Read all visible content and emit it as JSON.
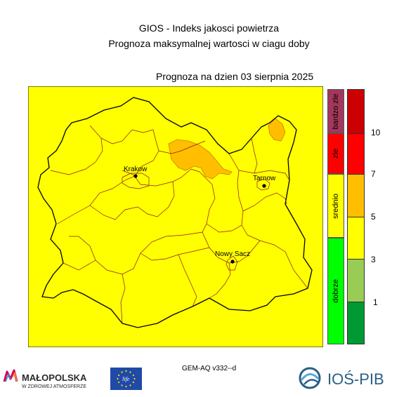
{
  "title": "GIOS - Indeks jakosci powietrza",
  "subtitle": "Prognoza maksymalnej wartosci w ciagu doby",
  "forecast_date": "Prognoza na dzien  03 sierpnia 2025",
  "cities": [
    {
      "name": "Krakow"
    },
    {
      "name": "Tarnow"
    },
    {
      "name": "Nowy Sacz"
    }
  ],
  "categories": [
    {
      "label": "bardzo zle",
      "color": "#a3375c"
    },
    {
      "label": "zle",
      "color": "#ff0000"
    },
    {
      "label": "srednio",
      "color": "#ffff00"
    },
    {
      "label": "dobrze",
      "color": "#00ff00"
    }
  ],
  "scale": {
    "colors": [
      "#009933",
      "#99cc55",
      "#ffff00",
      "#ffbf00",
      "#ff0000",
      "#cc0000"
    ],
    "ticks": [
      "1",
      "3",
      "5",
      "7",
      "10"
    ]
  },
  "map_colors": {
    "background": "#ffff00",
    "elevated": "#ffbf00"
  },
  "model": "GEM-AQ v332--d",
  "logos": {
    "malopolska_name": "MAŁOPOLSKA",
    "malopolska_tagline": "W ZDROWEJ ATMOSFERZE",
    "eu_flag_text": "life",
    "ios_name": "IOŚ-PIB"
  }
}
